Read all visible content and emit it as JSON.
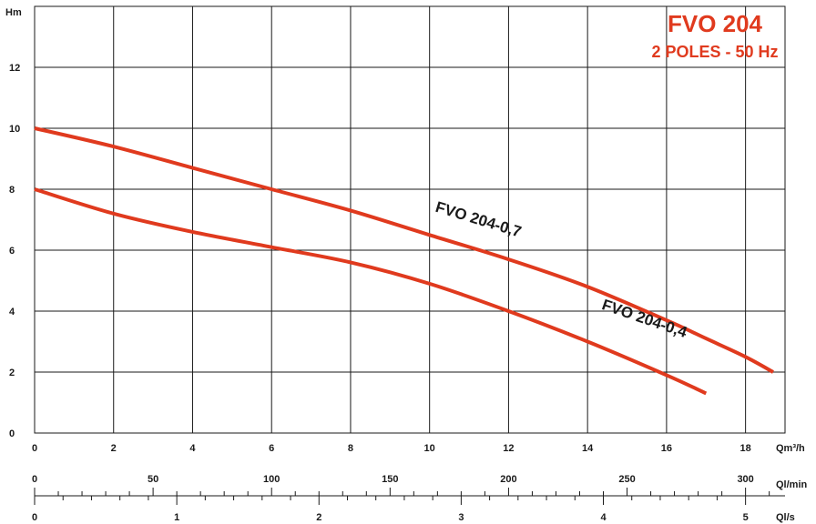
{
  "chart_data": {
    "type": "line",
    "title": "FVO 204",
    "subtitle": "2 POLES - 50 Hz",
    "ylabel": "Hm",
    "xlabel": "Qm³/h",
    "xlim": [
      0,
      19
    ],
    "ylim": [
      0,
      14
    ],
    "grid": true,
    "x_ticks": [
      0,
      2,
      4,
      6,
      8,
      10,
      12,
      14,
      16,
      18
    ],
    "y_ticks": [
      0,
      2,
      4,
      6,
      8,
      10,
      12
    ],
    "secondary_axes": [
      {
        "label": "Ql/min",
        "ticks": [
          0,
          50,
          100,
          150,
          200,
          250,
          300
        ]
      },
      {
        "label": "Ql/s",
        "ticks": [
          0,
          1,
          2,
          3,
          4,
          5
        ]
      }
    ],
    "series": [
      {
        "name": "FVO 204-0,7",
        "x": [
          0,
          2,
          4,
          6,
          8,
          10,
          12,
          14,
          16,
          17,
          18,
          18.7
        ],
        "y": [
          10,
          9.4,
          8.7,
          8.0,
          7.3,
          6.5,
          5.7,
          4.8,
          3.7,
          3.1,
          2.5,
          2.0
        ]
      },
      {
        "name": "FVO 204-0,4",
        "x": [
          0,
          2,
          4,
          6,
          8,
          10,
          12,
          14,
          16,
          17
        ],
        "y": [
          8,
          7.2,
          6.6,
          6.1,
          5.6,
          4.9,
          4.0,
          3.0,
          1.9,
          1.3
        ]
      }
    ],
    "colors": {
      "curve": "#e03a1e",
      "title": "#e03a1e",
      "grid": "#1a1a1a"
    }
  }
}
